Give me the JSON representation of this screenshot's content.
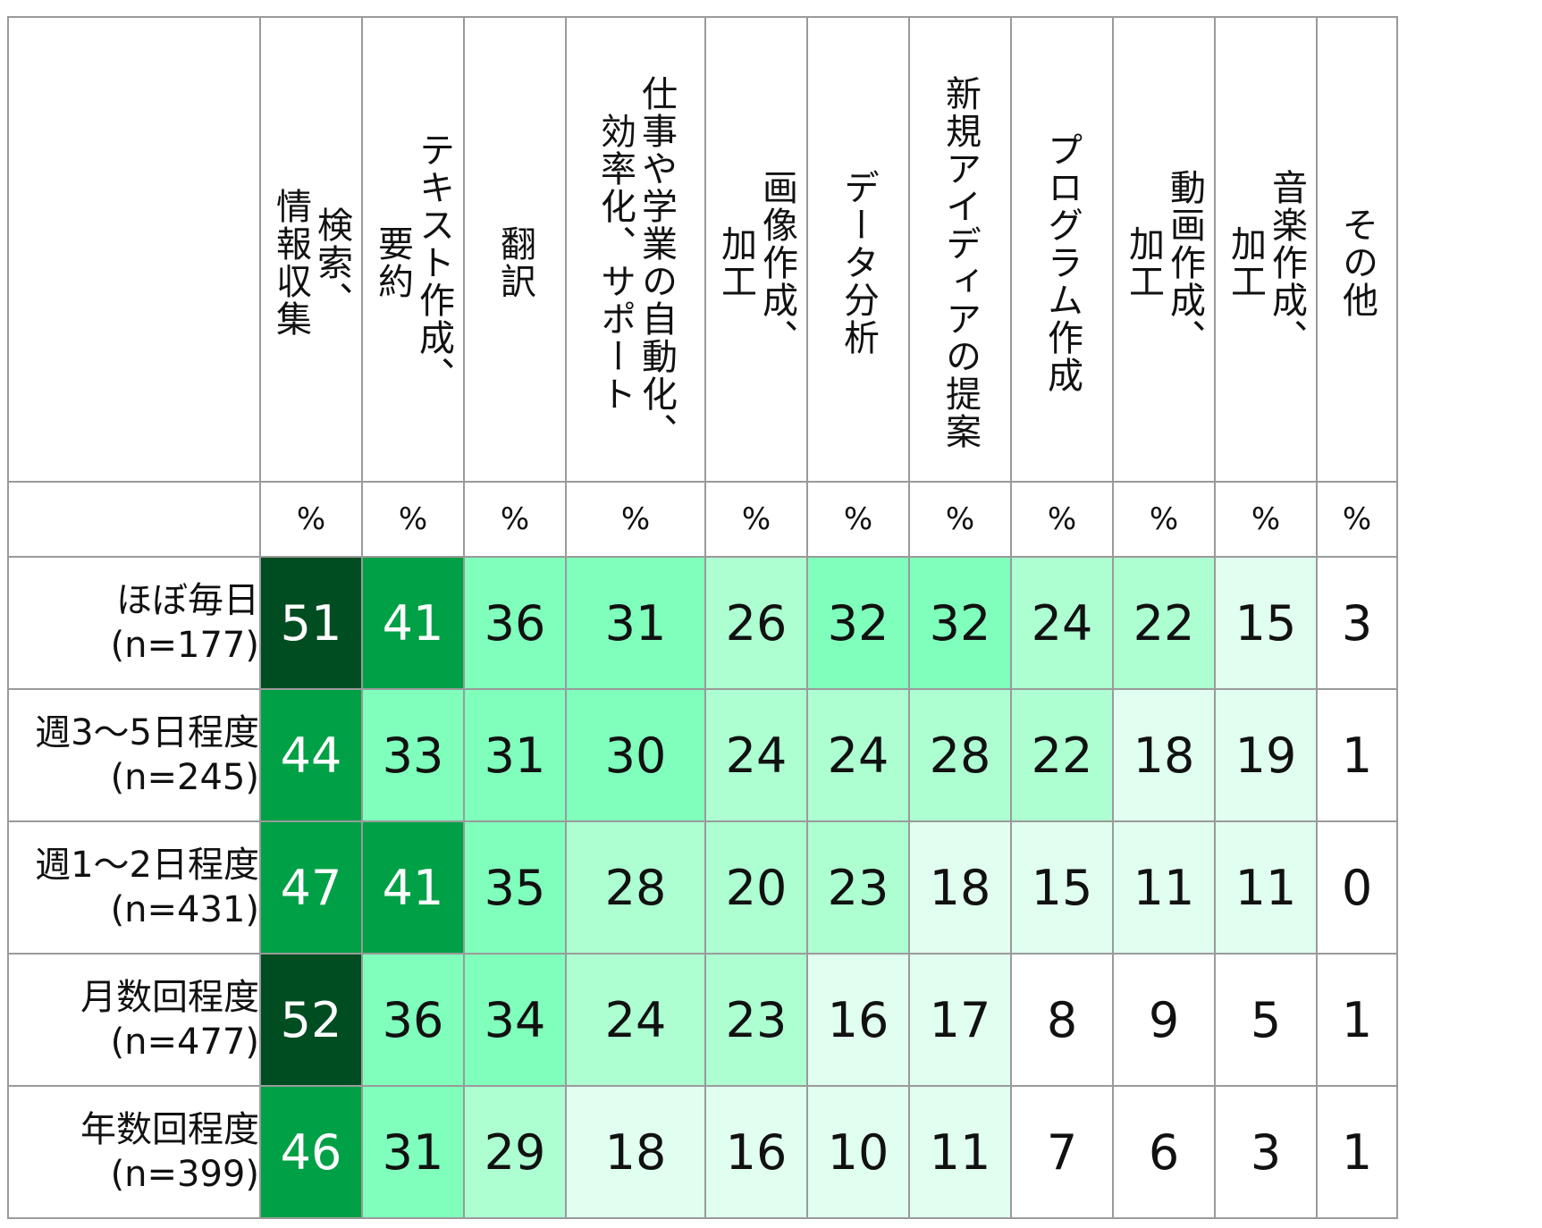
{
  "chart_data": {
    "type": "heatmap",
    "columns": [
      "検索、\n情報収集",
      "テキスト作成、\n要約",
      "翻訳",
      "仕事や学業の自動化、\n効率化、サポート",
      "画像作成、\n加工",
      "データ分析",
      "新規アイディアの提案",
      "プログラム作成",
      "動画作成、\n加工",
      "音楽作成、\n加工",
      "その他"
    ],
    "unit": "%",
    "rows": [
      {
        "label": "ほぼ毎日",
        "n": "(n=177)",
        "values": [
          51,
          41,
          36,
          31,
          26,
          32,
          32,
          24,
          22,
          15,
          3
        ]
      },
      {
        "label": "週3〜5日程度",
        "n": "(n=245)",
        "values": [
          44,
          33,
          31,
          30,
          24,
          24,
          28,
          22,
          18,
          19,
          1
        ]
      },
      {
        "label": "週1〜2日程度",
        "n": "(n=431)",
        "values": [
          47,
          41,
          35,
          28,
          20,
          23,
          18,
          15,
          11,
          11,
          0
        ]
      },
      {
        "label": "月数回程度",
        "n": "(n=477)",
        "values": [
          52,
          36,
          34,
          24,
          23,
          16,
          17,
          8,
          9,
          5,
          1
        ]
      },
      {
        "label": "年数回程度",
        "n": "(n=399)",
        "values": [
          46,
          31,
          29,
          18,
          16,
          10,
          11,
          7,
          6,
          3,
          1
        ]
      }
    ],
    "color_scale": [
      {
        "min": 50,
        "bg": "#004d22",
        "fg": "#ffffff"
      },
      {
        "min": 40,
        "bg": "#00a146",
        "fg": "#ffffff"
      },
      {
        "min": 30,
        "bg": "#80ffbc",
        "fg": "#111111"
      },
      {
        "min": 20,
        "bg": "#adffd2",
        "fg": "#111111"
      },
      {
        "min": 10,
        "bg": "#e0fff0",
        "fg": "#111111"
      },
      {
        "min": 0,
        "bg": "#ffffff",
        "fg": "#111111"
      }
    ]
  }
}
